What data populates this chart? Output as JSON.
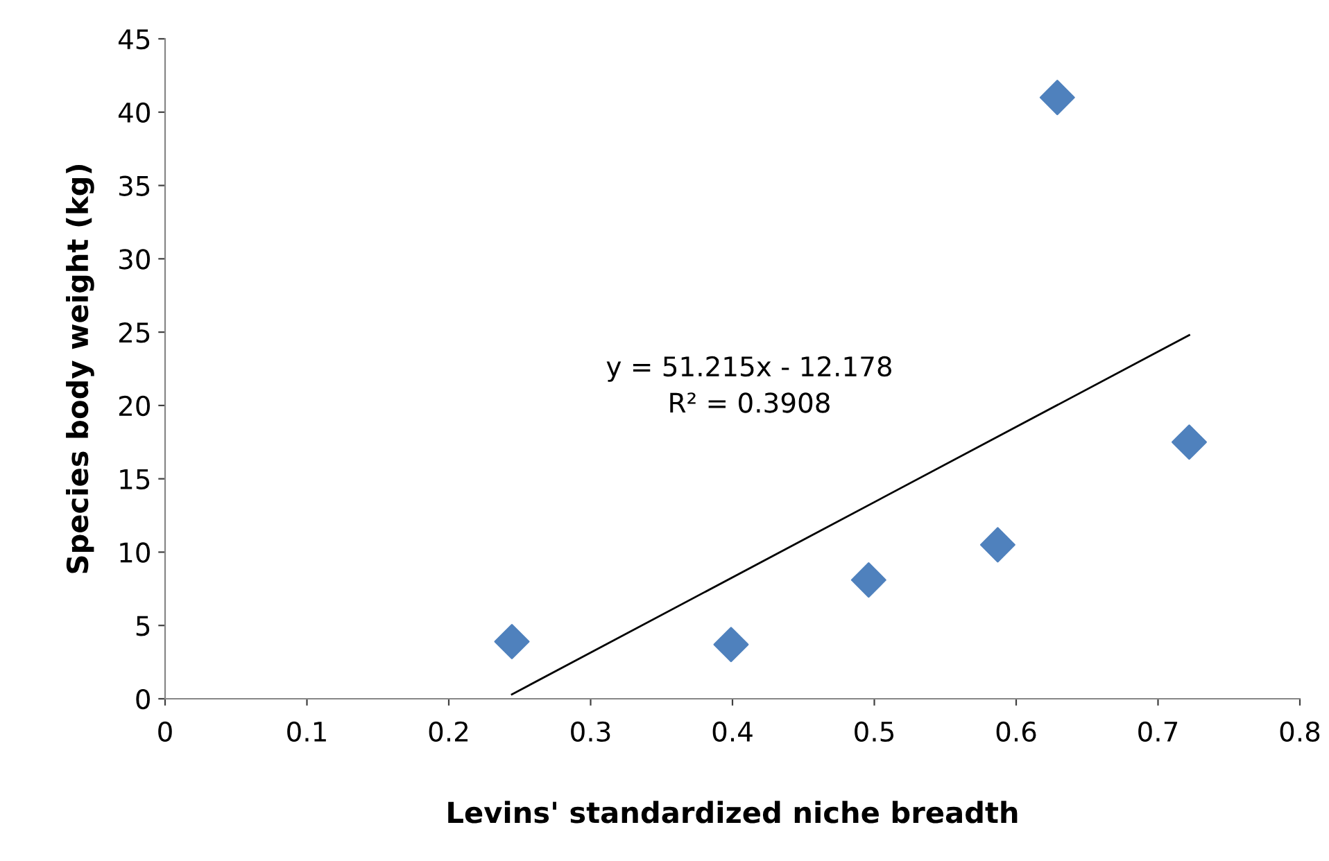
{
  "chart_data": {
    "type": "scatter",
    "xlabel": "Levins' standardized niche breadth",
    "ylabel": "Species body weight (kg)",
    "xlim": [
      0,
      0.8
    ],
    "xticks": [
      0,
      0.1,
      0.2,
      0.3,
      0.4,
      0.5,
      0.6,
      0.7,
      0.8
    ],
    "ylim": [
      0,
      45
    ],
    "yticks": [
      0,
      5,
      10,
      15,
      20,
      25,
      30,
      35,
      40,
      45
    ],
    "grid": false,
    "legend": false,
    "series": [
      {
        "marker": "diamond",
        "color": "#4f81bd",
        "x": [
          0.2445,
          0.399,
          0.496,
          0.587,
          0.629,
          0.722
        ],
        "values": [
          3.9,
          3.7,
          8.1,
          10.5,
          41.0,
          17.5
        ]
      },
      {
        "type": "line",
        "marker": "none",
        "line_style": "solid",
        "color": "#000000",
        "x": [
          0.2445,
          0.722
        ],
        "values": [
          0.3,
          24.8
        ]
      }
    ],
    "annotations": [
      "y = 51.215x - 12.178",
      "R² = 0.3908"
    ]
  }
}
